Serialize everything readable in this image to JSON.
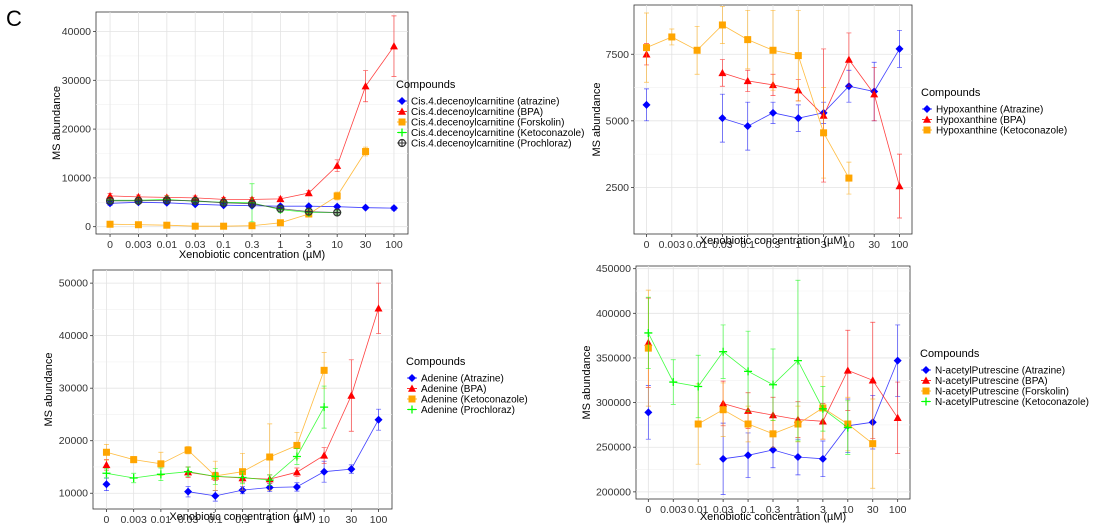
{
  "panel_label": "C",
  "colors": {
    "atrazine": "#0000ff",
    "bpa": "#ff0000",
    "forskolin": "#ffa500",
    "ketoconazole": "#00ff00",
    "prochloraz": "#333333"
  },
  "chart_data": [
    {
      "type": "line",
      "xlabel": "Xenobiotic concentration (µM)",
      "ylabel": "MS abundance",
      "legend_title": "Compounds",
      "legend_position": "right",
      "grid": true,
      "categories": [
        "0",
        "0.003",
        "0.01",
        "0.03",
        "0.1",
        "0.3",
        "1",
        "3",
        "10",
        "30",
        "100"
      ],
      "ylim": [
        -1500,
        44000
      ],
      "yticks": [
        0,
        10000,
        20000,
        30000,
        40000
      ],
      "series": [
        {
          "name": "Cis.4.decenoylcarnitine (atrazine)",
          "color": "#0000ff",
          "marker": "circle",
          "values": [
            4800,
            5000,
            4900,
            4600,
            4400,
            4300,
            4200,
            4200,
            4100,
            3900,
            3800
          ],
          "errors": [
            400,
            300,
            300,
            300,
            300,
            300,
            300,
            300,
            300,
            300,
            400
          ]
        },
        {
          "name": "Cis.4.decenoylcarnitine (BPA)",
          "color": "#ff0000",
          "marker": "triangle",
          "values": [
            6300,
            6100,
            6000,
            5900,
            5600,
            5600,
            5700,
            6900,
            12500,
            28800,
            37000
          ],
          "errors": [
            500,
            400,
            400,
            400,
            400,
            400,
            400,
            500,
            1200,
            3200,
            6200
          ]
        },
        {
          "name": "Cis.4.decenoylcarnitine (Forskolin)",
          "color": "#ffa500",
          "marker": "square",
          "values": [
            500,
            400,
            300,
            100,
            100,
            200,
            800,
            2600,
            6300,
            15400,
            null
          ],
          "errors": [
            200,
            200,
            200,
            200,
            200,
            200,
            300,
            500,
            800,
            900,
            null
          ]
        },
        {
          "name": "Cis.4.decenoylcarnitine (Ketoconazole)",
          "color": "#00ff00",
          "marker": "plus",
          "values": [
            5400,
            5400,
            5600,
            5200,
            5000,
            4900,
            3500,
            2900,
            2900,
            null,
            null
          ],
          "errors": [
            500,
            500,
            500,
            500,
            500,
            3900,
            600,
            600,
            500,
            null,
            null
          ]
        },
        {
          "name": "Cis.4.decenoylcarnitine (Prochloraz)",
          "color": "#333333",
          "marker": "circleplus",
          "values": [
            5300,
            5300,
            5400,
            5300,
            4900,
            4700,
            3700,
            3100,
            2900,
            null,
            null
          ],
          "errors": [
            300,
            300,
            300,
            300,
            300,
            300,
            300,
            300,
            300,
            null,
            null
          ]
        }
      ]
    },
    {
      "type": "line",
      "xlabel": "Xenobiotic concentration (µM)",
      "ylabel": "MS abundance",
      "legend_title": "Compounds",
      "legend_position": "right",
      "grid": true,
      "categories": [
        "0",
        "0.003",
        "0.01",
        "0.03",
        "0.1",
        "0.3",
        "1",
        "3",
        "10",
        "30",
        "100"
      ],
      "ylim": [
        750,
        9350
      ],
      "yticks": [
        2500,
        5000,
        7500
      ],
      "series": [
        {
          "name": "Hypoxanthine (Atrazine)",
          "color": "#0000ff",
          "marker": "circle",
          "values": [
            5600,
            null,
            null,
            5100,
            4800,
            5300,
            5100,
            5300,
            6300,
            6100,
            7700
          ],
          "errors": [
            600,
            null,
            null,
            900,
            900,
            400,
            500,
            400,
            600,
            1100,
            700
          ]
        },
        {
          "name": "Hypoxanthine (BPA)",
          "color": "#ff0000",
          "marker": "triangle",
          "values": [
            7500,
            null,
            null,
            6800,
            6500,
            6350,
            6150,
            5200,
            7300,
            6000,
            2550
          ],
          "errors": [
            400,
            null,
            null,
            500,
            400,
            400,
            400,
            2500,
            1000,
            1000,
            1200
          ]
        },
        {
          "name": "Hypoxanthine (Ketoconazole)",
          "color": "#ffa500",
          "marker": "square",
          "values": [
            7750,
            8150,
            7650,
            8600,
            8050,
            7650,
            7450,
            4550,
            2850,
            null,
            null
          ],
          "errors": [
            1300,
            300,
            900,
            700,
            1100,
            1500,
            1700,
            1700,
            600,
            null,
            null
          ]
        }
      ]
    },
    {
      "type": "line",
      "xlabel": "Xenobiotic concentration (µM)",
      "ylabel": "MS abundance",
      "legend_title": "Compounds",
      "legend_position": "right",
      "grid": true,
      "categories": [
        "0",
        "0.003",
        "0.01",
        "0.03",
        "0.1",
        "0.3",
        "1",
        "3",
        "10",
        "30",
        "100"
      ],
      "ylim": [
        7000,
        52500
      ],
      "yticks": [
        10000,
        20000,
        30000,
        40000,
        50000
      ],
      "series": [
        {
          "name": "Adenine (Atrazine)",
          "color": "#0000ff",
          "marker": "circle",
          "values": [
            11700,
            null,
            null,
            10300,
            9500,
            10600,
            11100,
            11200,
            14100,
            14600,
            24000
          ],
          "errors": [
            1200,
            null,
            null,
            1000,
            1000,
            700,
            800,
            800,
            2000,
            800,
            2000
          ]
        },
        {
          "name": "Adenine (BPA)",
          "color": "#ff0000",
          "marker": "triangle",
          "values": [
            15400,
            null,
            null,
            14000,
            13200,
            12900,
            12700,
            14000,
            17200,
            28600,
            45200
          ],
          "errors": [
            1000,
            null,
            null,
            1000,
            800,
            800,
            800,
            800,
            1500,
            6800,
            4800
          ]
        },
        {
          "name": "Adenine (Ketoconazole)",
          "color": "#ffa500",
          "marker": "square",
          "values": [
            17800,
            16400,
            15600,
            18200,
            13300,
            14100,
            16900,
            19100,
            33400,
            null,
            null
          ],
          "errors": [
            1500,
            600,
            2200,
            700,
            2800,
            3500,
            6300,
            2500,
            3400,
            null,
            null
          ]
        },
        {
          "name": "Adenine (Prochloraz)",
          "color": "#00ff00",
          "marker": "plus",
          "values": [
            13800,
            12900,
            13600,
            14100,
            13200,
            13000,
            12500,
            17000,
            26400,
            null,
            null
          ],
          "errors": [
            900,
            900,
            1200,
            900,
            1500,
            1200,
            1000,
            1500,
            4000,
            null,
            null
          ]
        }
      ]
    },
    {
      "type": "line",
      "xlabel": "Xenobiotic concentration (µM)",
      "ylabel": "MS abundance",
      "legend_title": "Compounds",
      "legend_position": "right",
      "grid": true,
      "categories": [
        "0",
        "0.003",
        "0.01",
        "0.03",
        "0.1",
        "0.3",
        "1",
        "3",
        "10",
        "30",
        "100"
      ],
      "ylim": [
        192000,
        453000
      ],
      "yticks": [
        200000,
        250000,
        300000,
        350000,
        400000,
        450000
      ],
      "series": [
        {
          "name": "N-acetylPutrescine (Atrazine)",
          "color": "#0000ff",
          "marker": "circle",
          "values": [
            289000,
            null,
            null,
            237000,
            241000,
            247000,
            239000,
            237000,
            274000,
            278000,
            347000
          ],
          "errors": [
            30000,
            null,
            null,
            40000,
            25000,
            20000,
            20000,
            20000,
            30000,
            30000,
            40000
          ]
        },
        {
          "name": "N-acetylPutrescine (BPA)",
          "color": "#ff0000",
          "marker": "triangle",
          "values": [
            367000,
            null,
            null,
            299000,
            291000,
            286000,
            281000,
            279000,
            336000,
            325000,
            283000
          ],
          "errors": [
            50000,
            null,
            null,
            25000,
            20000,
            20000,
            20000,
            20000,
            45000,
            65000,
            40000
          ]
        },
        {
          "name": "N-acetylPutrescine (Forskolin)",
          "color": "#ffa500",
          "marker": "square",
          "values": [
            361000,
            null,
            276000,
            292000,
            276000,
            265000,
            276000,
            294000,
            276000,
            254000,
            null
          ],
          "errors": [
            65000,
            null,
            45000,
            30000,
            20000,
            15000,
            20000,
            35000,
            30000,
            50000,
            null
          ]
        },
        {
          "name": "N-acetylPutrescine (Ketoconazole)",
          "color": "#00ff00",
          "marker": "plus",
          "values": [
            378000,
            323000,
            318000,
            357000,
            335000,
            320000,
            347000,
            293000,
            272000,
            null,
            null
          ],
          "errors": [
            40000,
            25000,
            35000,
            30000,
            45000,
            40000,
            90000,
            25000,
            30000,
            null,
            null
          ]
        }
      ]
    }
  ]
}
